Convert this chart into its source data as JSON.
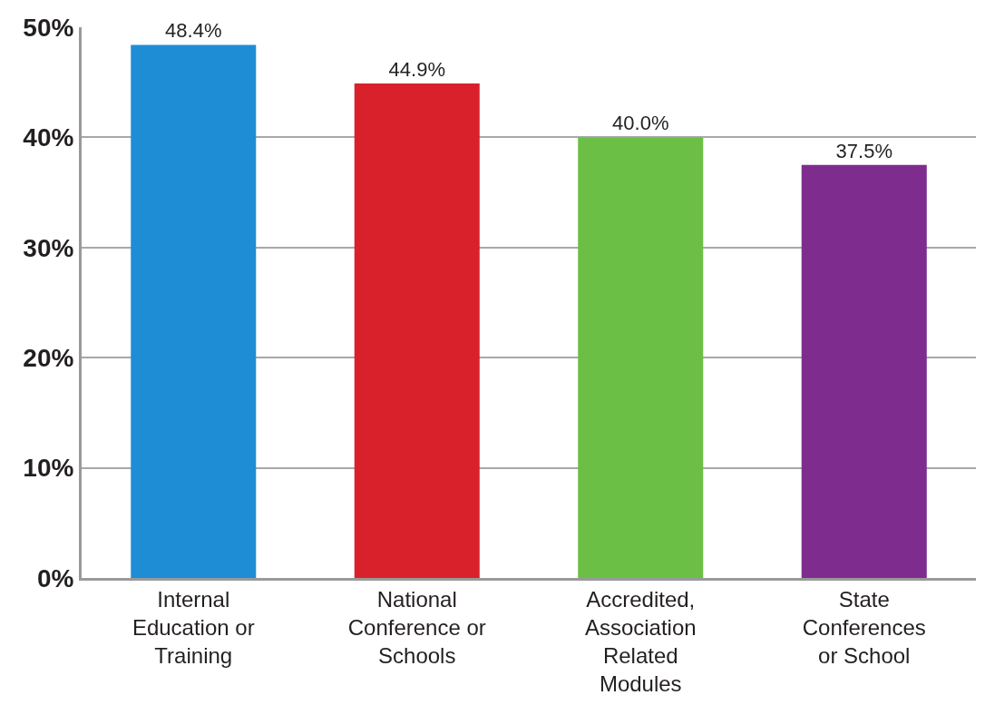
{
  "chart_data": {
    "type": "bar",
    "categories": [
      "Internal Education or Training",
      "National Conference or Schools",
      "Accredited, Association Related Modules",
      "State Conferences or School"
    ],
    "values": [
      48.4,
      44.9,
      40.0,
      37.5
    ],
    "colors": [
      "#1f8dd6",
      "#d8212b",
      "#6cbf45",
      "#7e2d8f"
    ],
    "value_labels": [
      "48.4%",
      "44.9%",
      "40.0%",
      "37.5%"
    ],
    "ylim": [
      0,
      50
    ],
    "yticks": [
      {
        "value": 0,
        "label": "0%"
      },
      {
        "value": 10,
        "label": "10%"
      },
      {
        "value": 20,
        "label": "20%"
      },
      {
        "value": 30,
        "label": "30%"
      },
      {
        "value": 40,
        "label": "40%"
      },
      {
        "value": 50,
        "label": "50%"
      }
    ],
    "grid": "y"
  }
}
